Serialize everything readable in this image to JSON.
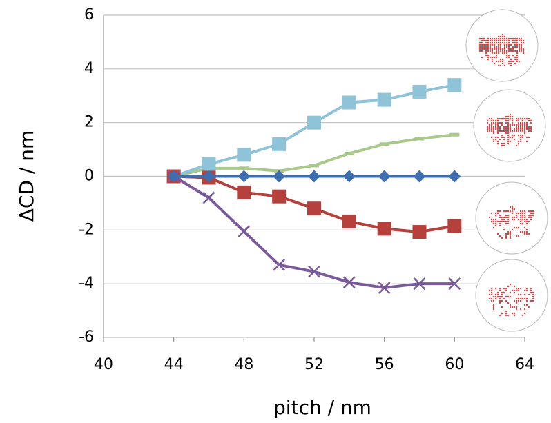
{
  "chart_data": {
    "type": "line",
    "x_label": "pitch / nm",
    "y_label": "ΔCD / nm",
    "x": [
      44,
      46,
      48,
      50,
      52,
      54,
      56,
      58,
      60
    ],
    "xlim": [
      40,
      64
    ],
    "xticks": [
      40,
      44,
      48,
      52,
      56,
      60,
      64
    ],
    "ylim": [
      -6,
      6
    ],
    "yticks": [
      -6,
      -4,
      -2,
      0,
      2,
      4,
      6
    ],
    "grid": true,
    "series": [
      {
        "color": "#a9c98a",
        "marker": "dash",
        "values": [
          0,
          0.3,
          0.3,
          0.2,
          0.4,
          0.85,
          1.2,
          1.4,
          1.55
        ]
      },
      {
        "color": "#8ec3d8",
        "marker": "square",
        "values": [
          0,
          0.45,
          0.8,
          1.2,
          2.0,
          2.75,
          2.85,
          3.15,
          3.4
        ]
      },
      {
        "color": "#b5403c",
        "marker": "square",
        "values": [
          0,
          -0.05,
          -0.6,
          -0.75,
          -1.2,
          -1.68,
          -1.95,
          -2.07,
          -1.85
        ]
      },
      {
        "color": "#7b5a9c",
        "marker": "x",
        "values": [
          0,
          -0.8,
          -2.05,
          -3.3,
          -3.55,
          -3.95,
          -4.15,
          -4.0,
          -4.0
        ]
      },
      {
        "color": "#3d6eb0",
        "marker": "diamond",
        "values": [
          0,
          0,
          0,
          0,
          0,
          0,
          0,
          0,
          0
        ]
      }
    ]
  }
}
